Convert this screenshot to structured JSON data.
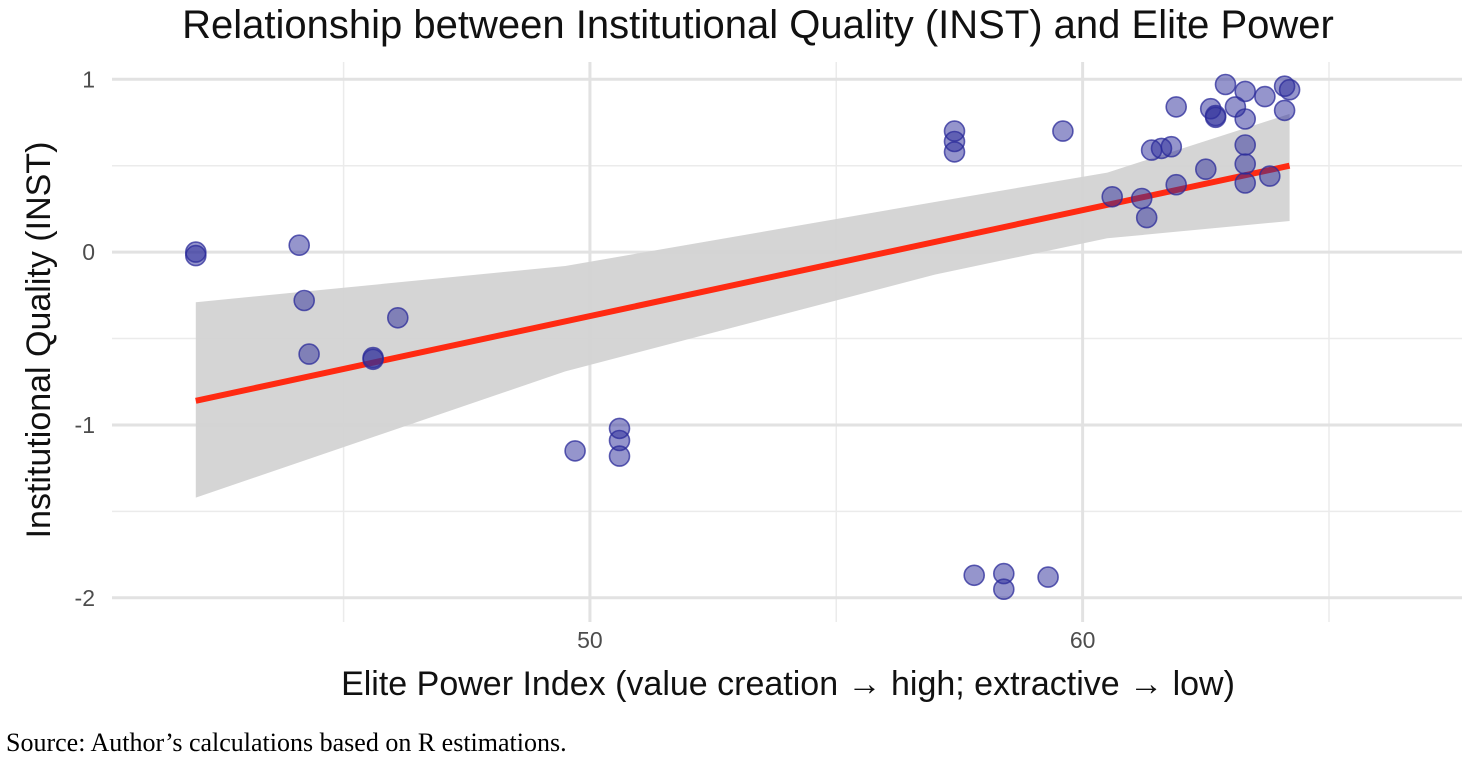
{
  "chart_data": {
    "type": "scatter",
    "title": "Relationship between Institutional Quality (INST) and Elite Power",
    "xlabel": "Elite Power Index (value creation → high; extractive → low)",
    "ylabel": "Institutional Quality (INST)",
    "xlim": [
      40.3,
      67.7
    ],
    "ylim": [
      -2.14,
      1.1
    ],
    "x_ticks": [
      50,
      60
    ],
    "x_tick_labels": [
      "50",
      "60"
    ],
    "y_ticks": [
      1,
      0,
      -1,
      -2
    ],
    "y_tick_labels": [
      "1",
      "0",
      "-1",
      "-2"
    ],
    "x_minor_gridlines": [
      45,
      55,
      65
    ],
    "y_minor_gridlines": [
      0.5,
      -0.5,
      -1.5
    ],
    "grid": true,
    "point_color": "#2B2B99",
    "line_color": "#FF2A12",
    "band_color": "#D3D3D3",
    "points": [
      {
        "x": 42.0,
        "y": 0.0
      },
      {
        "x": 42.0,
        "y": -0.02
      },
      {
        "x": 44.1,
        "y": 0.04
      },
      {
        "x": 44.2,
        "y": -0.28
      },
      {
        "x": 44.3,
        "y": -0.59
      },
      {
        "x": 45.6,
        "y": -0.61
      },
      {
        "x": 45.6,
        "y": -0.62
      },
      {
        "x": 46.1,
        "y": -0.38
      },
      {
        "x": 49.7,
        "y": -1.15
      },
      {
        "x": 50.6,
        "y": -1.02
      },
      {
        "x": 50.6,
        "y": -1.09
      },
      {
        "x": 50.6,
        "y": -1.18
      },
      {
        "x": 57.4,
        "y": 0.7
      },
      {
        "x": 57.4,
        "y": 0.64
      },
      {
        "x": 57.4,
        "y": 0.58
      },
      {
        "x": 57.8,
        "y": -1.87
      },
      {
        "x": 58.4,
        "y": -1.86
      },
      {
        "x": 58.4,
        "y": -1.95
      },
      {
        "x": 59.3,
        "y": -1.88
      },
      {
        "x": 59.6,
        "y": 0.7
      },
      {
        "x": 60.6,
        "y": 0.32
      },
      {
        "x": 61.2,
        "y": 0.31
      },
      {
        "x": 61.3,
        "y": 0.2
      },
      {
        "x": 61.4,
        "y": 0.59
      },
      {
        "x": 61.6,
        "y": 0.6
      },
      {
        "x": 61.8,
        "y": 0.61
      },
      {
        "x": 61.9,
        "y": 0.84
      },
      {
        "x": 61.9,
        "y": 0.39
      },
      {
        "x": 62.5,
        "y": 0.48
      },
      {
        "x": 62.6,
        "y": 0.83
      },
      {
        "x": 62.7,
        "y": 0.79
      },
      {
        "x": 62.7,
        "y": 0.78
      },
      {
        "x": 62.9,
        "y": 0.97
      },
      {
        "x": 63.1,
        "y": 0.84
      },
      {
        "x": 63.3,
        "y": 0.4
      },
      {
        "x": 63.3,
        "y": 0.51
      },
      {
        "x": 63.3,
        "y": 0.62
      },
      {
        "x": 63.3,
        "y": 0.77
      },
      {
        "x": 63.3,
        "y": 0.93
      },
      {
        "x": 63.7,
        "y": 0.9
      },
      {
        "x": 63.8,
        "y": 0.44
      },
      {
        "x": 64.1,
        "y": 0.96
      },
      {
        "x": 64.1,
        "y": 0.82
      },
      {
        "x": 64.2,
        "y": 0.94
      }
    ],
    "fit_line": {
      "x": [
        42.0,
        64.2
      ],
      "y": [
        -0.86,
        0.5
      ]
    },
    "confidence_band": {
      "x": [
        42.0,
        49.5,
        57.0,
        60.5,
        64.2
      ],
      "upper": [
        -0.29,
        -0.08,
        0.29,
        0.46,
        0.8
      ],
      "lower": [
        -1.42,
        -0.69,
        -0.13,
        0.08,
        0.18
      ]
    }
  },
  "footer": {
    "source": "Source: Author’s calculations based on R estimations."
  }
}
